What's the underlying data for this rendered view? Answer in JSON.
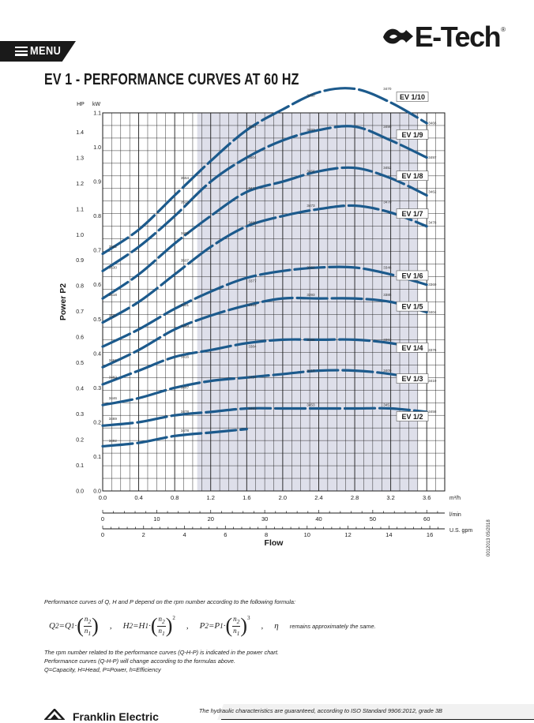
{
  "header": {
    "menu_label": "MENU",
    "brand": "E-Tech",
    "brand_reg": "®",
    "title": "EV 1 - PERFORMANCE CURVES AT 60 HZ"
  },
  "side_code": "0012013 05/2018",
  "formula": {
    "intro": "Performance curves of Q, H and P depend on the rpm number according to the following formula:",
    "eta_note": "remains approximately the same."
  },
  "notes": [
    "The rpm number related to the performance curves (Q-H-P) is indicated in the power chart.",
    "Performance curves (Q-H-P) will change according to the formulas above.",
    "Q=Capacity, H=Head, P=Power, h=Efficiency"
  ],
  "footer": {
    "text": "The hydraulic characteristics are guaranteed, according to ISO Standard 9906:2012, grade 3B",
    "bottom_brand": "Franklin Electric"
  },
  "colors": {
    "curve": "#1c5a8c",
    "shade": "#dedfea",
    "grid": "#1a1a1a",
    "text": "#1a1a1a"
  },
  "chart_data": {
    "type": "line",
    "ylabel": "Power P2",
    "xlabel": "Flow",
    "unit_hp": "HP",
    "unit_kw": "kW",
    "xlim": [
      0,
      3.8
    ],
    "ylim_kw": [
      0,
      1.1
    ],
    "x_ticks": [
      "0.0",
      "0.4",
      "0.8",
      "1.2",
      "1.6",
      "2.0",
      "2.4",
      "2.8",
      "3.2",
      "3.6"
    ],
    "x_unit": "m³/h",
    "kw_ticks": [
      "0.0",
      "0.1",
      "0.2",
      "0.3",
      "0.4",
      "0.5",
      "0.6",
      "0.7",
      "0.8",
      "0.9",
      "1.0",
      "1.1"
    ],
    "hp_ticks": [
      "0.0",
      "0.1",
      "0.2",
      "0.3",
      "0.4",
      "0.5",
      "0.6",
      "0.7",
      "0.8",
      "0.9",
      "1.0",
      "1.1",
      "1.2",
      "1.3",
      "1.4"
    ],
    "secondary_axes": [
      {
        "unit": "l/min",
        "max": 63.33,
        "ticks": [
          "0",
          "10",
          "20",
          "30",
          "40",
          "50",
          "60"
        ]
      },
      {
        "unit": "U.S. gpm",
        "max": 16.73,
        "ticks": [
          "0",
          "2",
          "4",
          "6",
          "8",
          "10",
          "12",
          "14",
          "16"
        ]
      }
    ],
    "shaded_region": [
      1.05,
      3.5
    ],
    "series": [
      {
        "name": "EV 1/10",
        "x": [
          0.0,
          0.4,
          0.8,
          1.2,
          1.6,
          2.0,
          2.4,
          2.8,
          3.2,
          3.6
        ],
        "y": [
          0.69,
          0.76,
          0.86,
          0.96,
          1.05,
          1.11,
          1.16,
          1.17,
          1.13,
          1.07
        ],
        "rpm": [
          {
            "x": 0.05,
            "y": 0.7,
            "v": "3532"
          },
          {
            "x": 0.85,
            "y": 0.9,
            "v": "3554"
          },
          {
            "x": 1.6,
            "y": 1.05,
            "v": "3494"
          },
          {
            "x": 2.25,
            "y": 1.14,
            "v": "3480"
          },
          {
            "x": 3.1,
            "y": 1.16,
            "v": "3470"
          },
          {
            "x": 3.6,
            "y": 1.06,
            "v": "3466"
          }
        ]
      },
      {
        "name": "EV 1/9",
        "x": [
          0.0,
          0.4,
          0.8,
          1.2,
          1.6,
          2.0,
          2.4,
          2.8,
          3.2,
          3.6
        ],
        "y": [
          0.64,
          0.71,
          0.8,
          0.9,
          0.97,
          1.02,
          1.05,
          1.06,
          1.02,
          0.97
        ],
        "rpm": [
          {
            "x": 0.05,
            "y": 0.64,
            "v": "3530"
          },
          {
            "x": 0.85,
            "y": 0.83,
            "v": "3522"
          },
          {
            "x": 1.6,
            "y": 0.96,
            "v": "3504"
          },
          {
            "x": 2.25,
            "y": 1.04,
            "v": "3493"
          },
          {
            "x": 3.1,
            "y": 1.05,
            "v": "3490"
          },
          {
            "x": 3.6,
            "y": 0.96,
            "v": "3497"
          }
        ]
      },
      {
        "name": "EV 1/8",
        "x": [
          0.0,
          0.4,
          0.8,
          1.2,
          1.6,
          2.0,
          2.4,
          2.8,
          3.2,
          3.6
        ],
        "y": [
          0.56,
          0.63,
          0.72,
          0.8,
          0.87,
          0.9,
          0.93,
          0.94,
          0.91,
          0.86
        ],
        "rpm": [
          {
            "x": 0.05,
            "y": 0.56,
            "v": "3518"
          },
          {
            "x": 0.85,
            "y": 0.74,
            "v": "3495"
          },
          {
            "x": 1.6,
            "y": 0.87,
            "v": "3471"
          },
          {
            "x": 2.25,
            "y": 0.92,
            "v": "3456"
          },
          {
            "x": 3.1,
            "y": 0.93,
            "v": "3452"
          },
          {
            "x": 3.6,
            "y": 0.86,
            "v": "3462"
          }
        ]
      },
      {
        "name": "EV 1/7",
        "x": [
          0.0,
          0.4,
          0.8,
          1.2,
          1.6,
          2.0,
          2.4,
          2.8,
          3.2,
          3.6
        ],
        "y": [
          0.49,
          0.55,
          0.63,
          0.71,
          0.77,
          0.8,
          0.82,
          0.83,
          0.81,
          0.77
        ],
        "rpm": [
          {
            "x": 0.05,
            "y": 0.5,
            "v": "3527"
          },
          {
            "x": 0.85,
            "y": 0.66,
            "v": "3507"
          },
          {
            "x": 1.6,
            "y": 0.77,
            "v": "3486"
          },
          {
            "x": 2.25,
            "y": 0.82,
            "v": "3473"
          },
          {
            "x": 3.1,
            "y": 0.83,
            "v": "3470"
          },
          {
            "x": 3.6,
            "y": 0.77,
            "v": "3478"
          }
        ]
      },
      {
        "name": "EV 1/6",
        "x": [
          0.0,
          0.4,
          0.8,
          1.2,
          1.6,
          2.0,
          2.4,
          2.8,
          3.2,
          3.6
        ],
        "y": [
          0.42,
          0.47,
          0.53,
          0.58,
          0.62,
          0.64,
          0.65,
          0.65,
          0.63,
          0.6
        ],
        "rpm": [
          {
            "x": 0.85,
            "y": 0.53,
            "v": "3421"
          },
          {
            "x": 1.6,
            "y": 0.6,
            "v": "3377"
          },
          {
            "x": 2.25,
            "y": 0.64,
            "v": "3352"
          },
          {
            "x": 3.1,
            "y": 0.64,
            "v": "3346"
          },
          {
            "x": 3.6,
            "y": 0.59,
            "v": "3369"
          }
        ]
      },
      {
        "name": "EV 1/5",
        "x": [
          0.0,
          0.4,
          0.8,
          1.2,
          1.6,
          2.0,
          2.4,
          2.8,
          3.2,
          3.6
        ],
        "y": [
          0.36,
          0.41,
          0.47,
          0.51,
          0.54,
          0.56,
          0.56,
          0.56,
          0.55,
          0.52
        ],
        "rpm": [
          {
            "x": 0.05,
            "y": 0.37,
            "v": "3461"
          },
          {
            "x": 0.85,
            "y": 0.47,
            "v": "3449"
          },
          {
            "x": 1.6,
            "y": 0.53,
            "v": "3418"
          },
          {
            "x": 2.25,
            "y": 0.56,
            "v": "3393"
          },
          {
            "x": 3.1,
            "y": 0.56,
            "v": "3385"
          },
          {
            "x": 3.6,
            "y": 0.51,
            "v": "3404"
          }
        ]
      },
      {
        "name": "EV 1/4",
        "x": [
          0.0,
          0.4,
          0.8,
          1.2,
          1.6,
          2.0,
          2.4,
          2.8,
          3.2,
          3.6
        ],
        "y": [
          0.31,
          0.35,
          0.39,
          0.41,
          0.43,
          0.44,
          0.44,
          0.44,
          0.43,
          0.41
        ],
        "rpm": [
          {
            "x": 0.05,
            "y": 0.32,
            "v": "3482"
          },
          {
            "x": 0.85,
            "y": 0.38,
            "v": "3416"
          },
          {
            "x": 1.6,
            "y": 0.41,
            "v": "3384"
          },
          {
            "x": 2.25,
            "y": 0.43,
            "v": "3366"
          },
          {
            "x": 3.1,
            "y": 0.43,
            "v": "3363"
          },
          {
            "x": 3.6,
            "y": 0.4,
            "v": "3376"
          }
        ]
      },
      {
        "name": "EV 1/3",
        "x": [
          0.0,
          0.4,
          0.8,
          1.2,
          1.6,
          2.0,
          2.4,
          2.8,
          3.2,
          3.6
        ],
        "y": [
          0.25,
          0.27,
          0.3,
          0.32,
          0.33,
          0.34,
          0.35,
          0.35,
          0.34,
          0.32
        ],
        "rpm": [
          {
            "x": 0.05,
            "y": 0.26,
            "v": "3446"
          },
          {
            "x": 0.85,
            "y": 0.29,
            "v": "3447"
          },
          {
            "x": 1.6,
            "y": 0.32,
            "v": "3424"
          },
          {
            "x": 2.25,
            "y": 0.34,
            "v": "3410"
          },
          {
            "x": 3.1,
            "y": 0.34,
            "v": "3400"
          },
          {
            "x": 3.6,
            "y": 0.31,
            "v": "3419"
          }
        ]
      },
      {
        "name": "EV 1/2",
        "x": [
          0.0,
          0.4,
          0.8,
          1.2,
          1.6,
          2.0,
          2.4,
          2.8,
          3.2,
          3.6
        ],
        "y": [
          0.19,
          0.2,
          0.22,
          0.23,
          0.24,
          0.24,
          0.24,
          0.24,
          0.24,
          0.23
        ],
        "rpm": [
          {
            "x": 0.05,
            "y": 0.2,
            "v": "3469"
          },
          {
            "x": 0.85,
            "y": 0.22,
            "v": "3478"
          },
          {
            "x": 1.6,
            "y": 0.23,
            "v": "3463"
          },
          {
            "x": 2.25,
            "y": 0.24,
            "v": "3453"
          },
          {
            "x": 3.1,
            "y": 0.24,
            "v": "3451"
          },
          {
            "x": 3.6,
            "y": 0.22,
            "v": "3458"
          }
        ]
      },
      {
        "name": "",
        "x": [
          0.0,
          0.4,
          0.8,
          1.2,
          1.6
        ],
        "y": [
          0.13,
          0.14,
          0.16,
          0.17,
          0.18
        ],
        "rpm": [
          {
            "x": 0.05,
            "y": 0.135,
            "v": "3492"
          },
          {
            "x": 0.85,
            "y": 0.165,
            "v": "3478"
          }
        ]
      }
    ]
  }
}
